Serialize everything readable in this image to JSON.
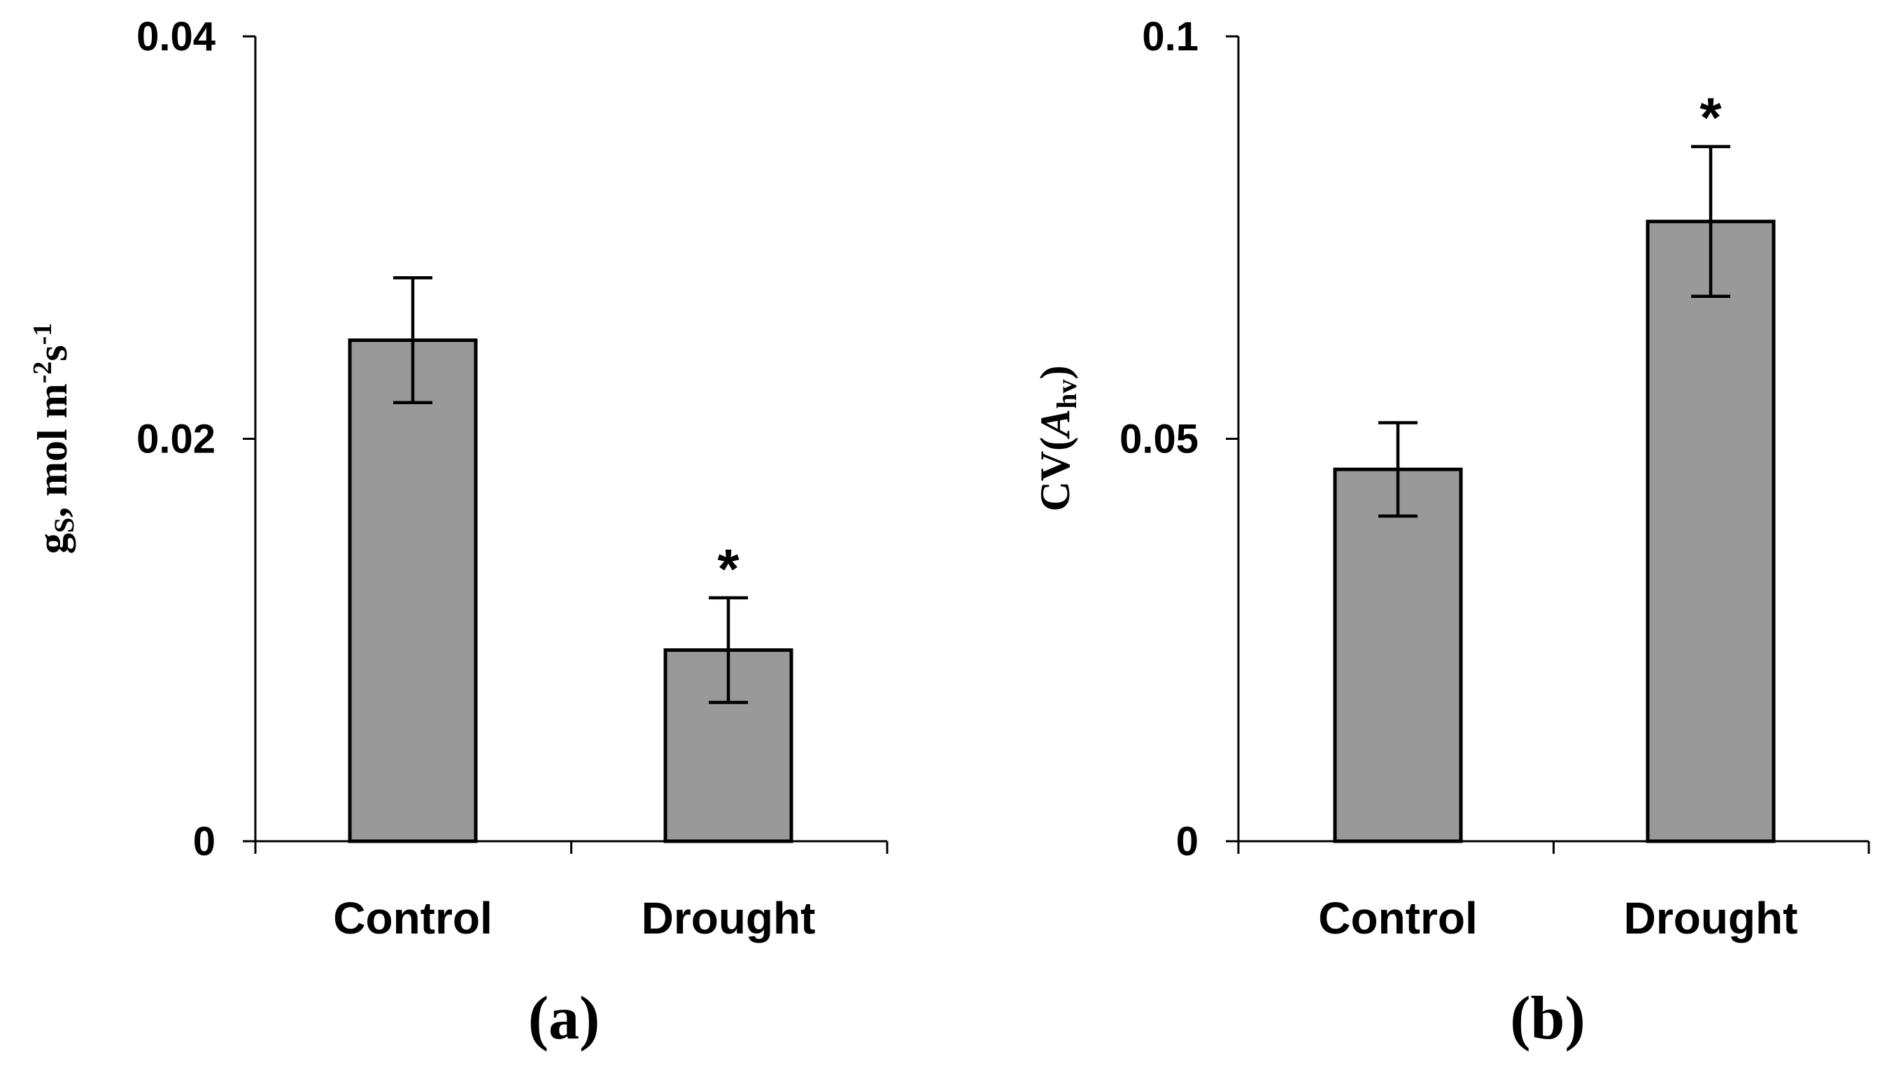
{
  "chart_data": [
    {
      "type": "bar",
      "panel_label": "(a)",
      "categories": [
        "Control",
        "Drought"
      ],
      "values": [
        0.0249,
        0.0095
      ],
      "errors": [
        0.0031,
        0.0026
      ],
      "significance": [
        "",
        "*"
      ],
      "ylabel": {
        "main": "g",
        "sub": "S",
        "rest": ", mol m",
        "sup1": "-2",
        "mid": "s",
        "sup2": "-1"
      },
      "yticks": [
        {
          "value": 0,
          "label": "0"
        },
        {
          "value": 0.02,
          "label": "0.02"
        },
        {
          "value": 0.04,
          "label": "0.04"
        }
      ],
      "ylim": [
        0,
        0.04
      ],
      "bar_color": "#999999"
    },
    {
      "type": "bar",
      "panel_label": "(b)",
      "categories": [
        "Control",
        "Drought"
      ],
      "values": [
        0.0462,
        0.077
      ],
      "errors": [
        0.0058,
        0.0093
      ],
      "significance": [
        "",
        "*"
      ],
      "ylabel": {
        "main": "CV(",
        "italic": "A",
        "sub": "hv",
        "end": ")"
      },
      "yticks": [
        {
          "value": 0,
          "label": "0"
        },
        {
          "value": 0.05,
          "label": "0.05"
        },
        {
          "value": 0.1,
          "label": "0.1"
        }
      ],
      "ylim": [
        0,
        0.1
      ],
      "bar_color": "#999999"
    }
  ]
}
